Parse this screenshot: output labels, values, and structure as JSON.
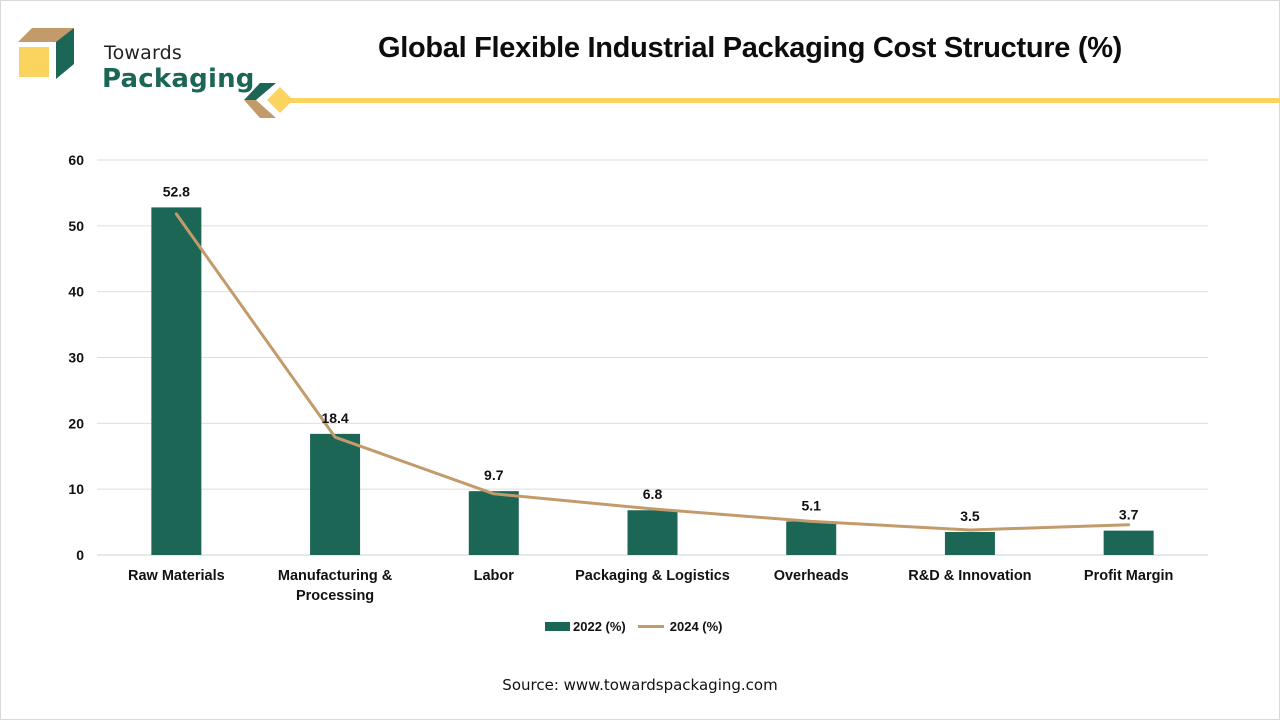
{
  "brand": {
    "line1": "Towards",
    "line2": "Packaging",
    "colors": {
      "green": "#1b6655",
      "tan": "#c39b6b",
      "yellow": "#fbd35f"
    }
  },
  "source": "Source: www.towardspackaging.com",
  "chart_data": {
    "type": "bar",
    "title": "Global Flexible Industrial Packaging Cost Structure (%)",
    "xlabel": "",
    "ylabel": "",
    "ylim": [
      0,
      60
    ],
    "yticks": [
      0,
      10,
      20,
      30,
      40,
      50,
      60
    ],
    "grid": true,
    "legend_position": "bottom",
    "categories": [
      [
        "Raw Materials"
      ],
      [
        "Manufacturing &",
        "Processing"
      ],
      [
        "Labor"
      ],
      [
        "Packaging & Logistics"
      ],
      [
        "Overheads"
      ],
      [
        "R&D & Innovation"
      ],
      [
        "Profit Margin"
      ]
    ],
    "series": [
      {
        "name": "2022 (%)",
        "type": "bar",
        "color": "#1b6655",
        "values": [
          52.8,
          18.4,
          9.7,
          6.8,
          5.1,
          3.5,
          3.7
        ],
        "data_labels": [
          "52.8",
          "18.4",
          "9.7",
          "6.8",
          "5.1",
          "3.5",
          "3.7"
        ]
      },
      {
        "name": "2024 (%)",
        "type": "line",
        "color": "#c39b6b",
        "values": [
          51.8,
          17.9,
          9.3,
          7.0,
          5.1,
          3.8,
          4.6
        ]
      }
    ]
  }
}
